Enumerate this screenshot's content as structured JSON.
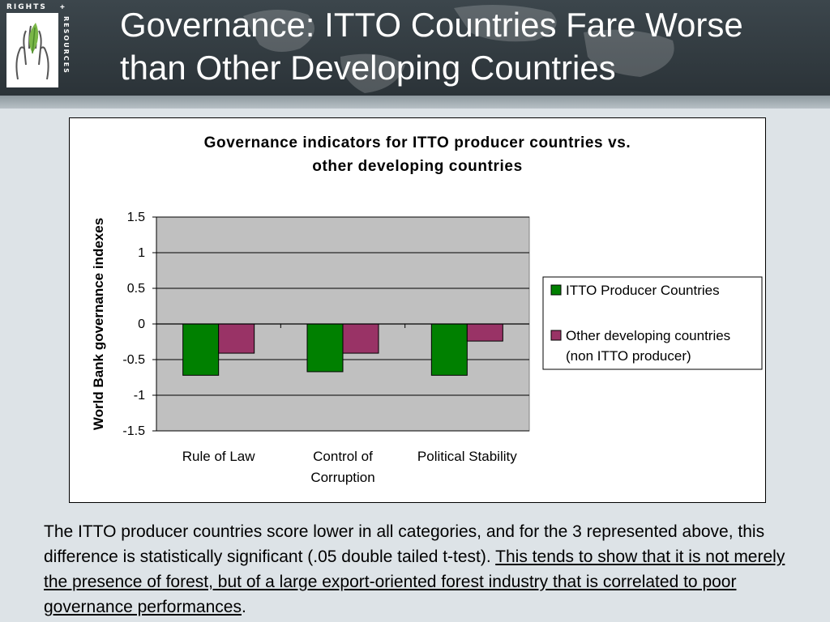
{
  "slide": {
    "title": "Governance: ITTO Countries Fare Worse than Other Developing Countries",
    "logo": {
      "top_text": "RIGHTS",
      "plus": "+",
      "side_text": "RESOURCES"
    },
    "caption": {
      "plain": "The ITTO producer countries score lower in all categories, and for the 3 represented above, this difference is statistically significant (.05 double tailed t-test). ",
      "emphasis": "This tends to show that it is not merely the presence of forest, but of a large export-oriented forest industry that is correlated to poor governance performances",
      "end": "."
    }
  },
  "colors": {
    "header_bg": "#2b3338",
    "plot_bg": "#c0c0c0",
    "series_itto": "#008000",
    "series_other": "#993366"
  },
  "chart_data": {
    "type": "bar",
    "title": "Governance indicators for ITTO producer countries vs. other developing countries",
    "title_lines": [
      "Governance indicators for ITTO producer countries vs.",
      "other developing countries"
    ],
    "ylabel": "World Bank governance indexes",
    "xlabel": "",
    "categories": [
      "Rule of Law",
      "Control of Corruption",
      "Political Stability"
    ],
    "category_lines": [
      [
        "Rule of Law"
      ],
      [
        "Control of",
        "Corruption"
      ],
      [
        "Political Stability"
      ]
    ],
    "series": [
      {
        "name": "ITTO Producer Countries",
        "legend_lines": [
          "ITTO Producer Countries"
        ],
        "color": "#008000",
        "values": [
          -0.72,
          -0.67,
          -0.72
        ]
      },
      {
        "name": "Other developing countries (non ITTO producer)",
        "legend_lines": [
          "Other developing countries",
          "(non ITTO producer)"
        ],
        "color": "#993366",
        "values": [
          -0.41,
          -0.41,
          -0.24
        ]
      }
    ],
    "ylim": [
      -1.5,
      1.5
    ],
    "yticks": [
      1.5,
      1,
      0.5,
      0,
      -0.5,
      -1,
      -1.5
    ],
    "ytick_labels": [
      "1.5",
      "1",
      "0.5",
      "0",
      "-0.5",
      "-1",
      "-1.5"
    ],
    "grid": true,
    "legend_position": "right"
  }
}
